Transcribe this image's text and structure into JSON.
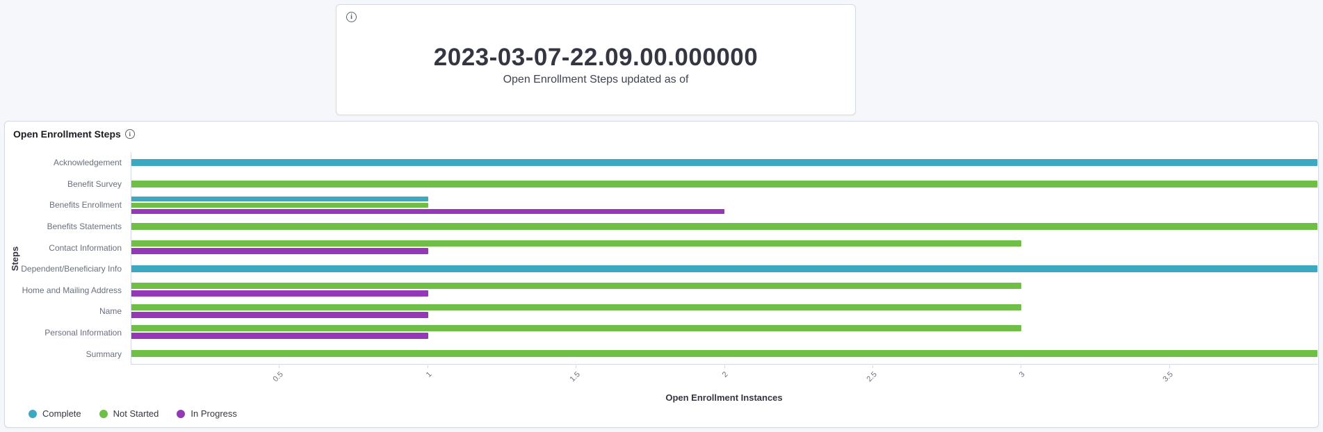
{
  "icons": {
    "info_glyph": "i"
  },
  "metric_panel": {
    "value": "2023-03-07-22.09.00.000000",
    "caption": "Open Enrollment Steps updated as of"
  },
  "chart_panel": {
    "title": "Open Enrollment Steps"
  },
  "chart_data": {
    "type": "bar",
    "orientation": "horizontal",
    "title": "Open Enrollment Steps",
    "xlabel": "Open Enrollment Instances",
    "ylabel": "Steps",
    "xlim": [
      0,
      4
    ],
    "xticks": [
      "0.5",
      "1",
      "1.5",
      "2",
      "2.5",
      "3",
      "3.5"
    ],
    "xtick_values": [
      0.5,
      1,
      1.5,
      2,
      2.5,
      3,
      3.5
    ],
    "grid": false,
    "legend_position": "bottom-left",
    "categories": [
      "Acknowledgement",
      "Benefit Survey",
      "Benefits Enrollment",
      "Benefits Statements",
      "Contact Information",
      "Dependent/Beneficiary Info",
      "Home and Mailing Address",
      "Name",
      "Personal Information",
      "Summary"
    ],
    "series": [
      {
        "name": "Complete",
        "color": "#3da9c1",
        "values": [
          4,
          0,
          1,
          0,
          0,
          4,
          0,
          0,
          0,
          0
        ]
      },
      {
        "name": "Not Started",
        "color": "#6fbe45",
        "values": [
          0,
          4,
          1,
          4,
          3,
          0,
          3,
          3,
          3,
          4
        ]
      },
      {
        "name": "In Progress",
        "color": "#9438b7",
        "values": [
          0,
          0,
          2,
          0,
          1,
          0,
          1,
          1,
          1,
          0
        ]
      }
    ]
  }
}
